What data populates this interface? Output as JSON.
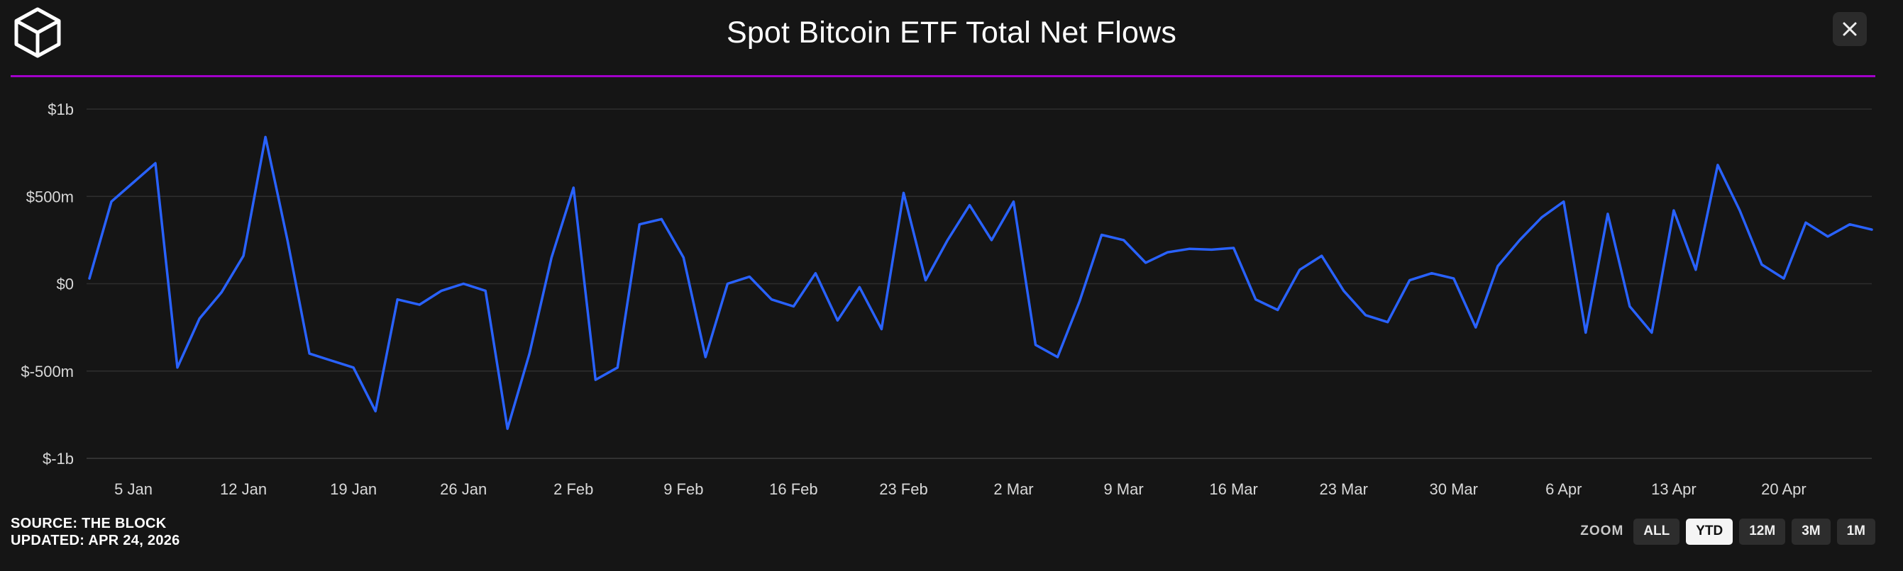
{
  "header": {
    "title": "Spot Bitcoin ETF Total Net Flows",
    "logo": "the-block-cube-logo",
    "close": "close"
  },
  "colors": {
    "accent": "#a100c9",
    "line": "#2962ff",
    "background": "#151515",
    "grid": "#2e2e2e",
    "axis_text": "#d8d8d8"
  },
  "footer": {
    "source": "SOURCE: THE BLOCK",
    "updated": "UPDATED: APR 24, 2026",
    "zoom_label": "ZOOM",
    "zoom_buttons": [
      {
        "label": "ALL",
        "active": false
      },
      {
        "label": "YTD",
        "active": true
      },
      {
        "label": "12M",
        "active": false
      },
      {
        "label": "3M",
        "active": false
      },
      {
        "label": "1M",
        "active": false
      }
    ]
  },
  "chart_data": {
    "type": "line",
    "title": "Spot Bitcoin ETF Total Net Flows",
    "grid": true,
    "legend": false,
    "unit": "USD millions (net flow per day)",
    "y_axis": {
      "ylim": [
        -1000,
        1000
      ],
      "tick_values": [
        1000,
        500,
        0,
        -500,
        -1000
      ],
      "tick_labels": [
        "$1b",
        "$500m",
        "$0",
        "$-500m",
        "$-1b"
      ]
    },
    "x_axis": {
      "tick_labels": [
        "5 Jan",
        "12 Jan",
        "19 Jan",
        "26 Jan",
        "2 Feb",
        "9 Feb",
        "16 Feb",
        "23 Feb",
        "2 Mar",
        "9 Mar",
        "16 Mar",
        "23 Mar",
        "30 Mar",
        "6 Apr",
        "13 Apr",
        "20 Apr"
      ],
      "tick_indices": [
        2,
        7,
        12,
        17,
        22,
        27,
        32,
        37,
        42,
        47,
        52,
        57,
        62,
        67,
        72,
        77
      ]
    },
    "series": [
      {
        "name": "Total Net Flows",
        "color": "#2962ff",
        "values": [
          30,
          470,
          580,
          690,
          -480,
          -200,
          -50,
          160,
          840,
          250,
          -400,
          -440,
          -480,
          -730,
          -90,
          -120,
          -40,
          0,
          -40,
          -830,
          -400,
          150,
          550,
          -550,
          -480,
          340,
          370,
          150,
          -420,
          0,
          40,
          -90,
          -130,
          60,
          -210,
          -20,
          -260,
          520,
          20,
          250,
          450,
          250,
          470,
          -350,
          -420,
          -100,
          280,
          250,
          120,
          180,
          200,
          195,
          205,
          -90,
          -150,
          80,
          160,
          -40,
          -180,
          -220,
          20,
          60,
          30,
          -250,
          100,
          250,
          380,
          470,
          -280,
          400,
          -130,
          -280,
          420,
          80,
          680,
          420,
          110,
          30,
          350,
          270,
          340,
          310
        ]
      }
    ]
  }
}
